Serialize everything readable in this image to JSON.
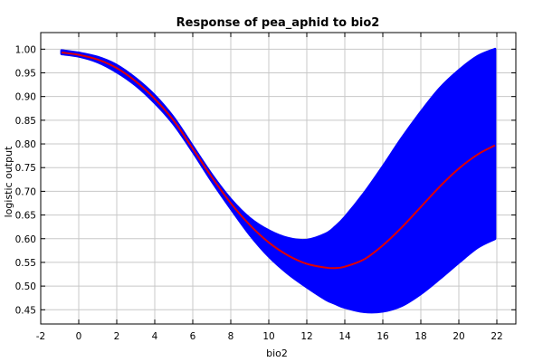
{
  "chart_data": {
    "type": "line",
    "title": "Response of pea_aphid to bio2",
    "xlabel": "bio2",
    "ylabel": "logistic output",
    "xlim": [
      -2,
      23
    ],
    "ylim": [
      0.42,
      1.035
    ],
    "xticks": [
      -2,
      0,
      2,
      4,
      6,
      8,
      10,
      12,
      14,
      16,
      18,
      20,
      22
    ],
    "xtick_labels": [
      "-2",
      "0",
      "2",
      "4",
      "6",
      "8",
      "10",
      "12",
      "14",
      "16",
      "18",
      "20",
      "22"
    ],
    "yticks": [
      0.45,
      0.5,
      0.55,
      0.6,
      0.65,
      0.7,
      0.75,
      0.8,
      0.85,
      0.9,
      0.95,
      1.0
    ],
    "ytick_labels": [
      "0.45",
      "0.50",
      "0.55",
      "0.60",
      "0.65",
      "0.70",
      "0.75",
      "0.80",
      "0.85",
      "0.90",
      "0.95",
      "1.00"
    ],
    "grid": true,
    "colors": {
      "band": "#0000ff",
      "mean": "#e00000"
    },
    "x": [
      -0.9,
      0,
      1,
      2,
      3,
      4,
      5,
      6,
      7,
      8,
      9,
      10,
      11,
      12,
      13,
      13.5,
      14,
      15,
      16,
      17,
      18,
      19,
      20,
      21,
      21.9
    ],
    "mean": [
      0.993,
      0.988,
      0.978,
      0.96,
      0.932,
      0.895,
      0.849,
      0.79,
      0.73,
      0.675,
      0.629,
      0.592,
      0.565,
      0.547,
      0.539,
      0.538,
      0.541,
      0.556,
      0.586,
      0.624,
      0.667,
      0.71,
      0.748,
      0.778,
      0.797
    ],
    "upper": [
      0.997,
      0.992,
      0.983,
      0.966,
      0.938,
      0.902,
      0.855,
      0.795,
      0.735,
      0.683,
      0.643,
      0.617,
      0.601,
      0.597,
      0.61,
      0.625,
      0.645,
      0.695,
      0.752,
      0.812,
      0.867,
      0.917,
      0.955,
      0.985,
      1.0
    ],
    "lower": [
      0.99,
      0.985,
      0.973,
      0.952,
      0.924,
      0.887,
      0.842,
      0.784,
      0.722,
      0.664,
      0.609,
      0.563,
      0.527,
      0.498,
      0.472,
      0.463,
      0.455,
      0.446,
      0.447,
      0.459,
      0.484,
      0.516,
      0.55,
      0.582,
      0.6
    ]
  }
}
